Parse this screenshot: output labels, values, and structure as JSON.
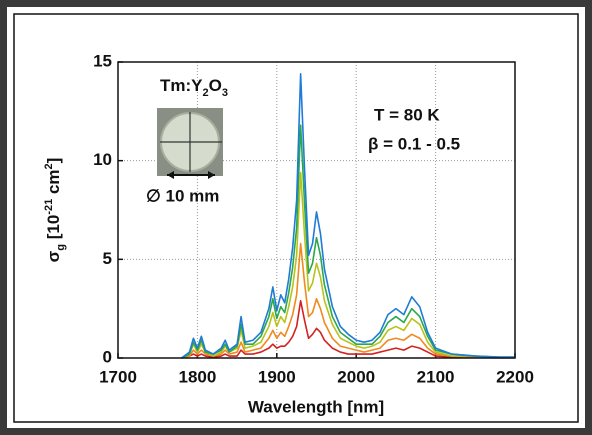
{
  "chart_data": {
    "type": "line",
    "ylabel": [
      "σ",
      "g",
      " [10",
      "-21",
      " cm",
      "2",
      "]"
    ],
    "xlabel": "Wavelength [nm]",
    "inset_label": [
      "Tm:Y",
      "2",
      "O",
      "3"
    ],
    "inset_scale": "∅ 10 mm",
    "annotations": [
      "T = 80 K",
      "β = 0.1 - 0.5"
    ],
    "xlim": [
      1700,
      2200
    ],
    "xticks": [
      1700,
      1800,
      1900,
      2000,
      2100,
      2200
    ],
    "ylim": [
      0,
      15
    ],
    "yticks": [
      0,
      5,
      10,
      15
    ],
    "grid": true,
    "x": [
      1780,
      1790,
      1795,
      1800,
      1805,
      1810,
      1820,
      1830,
      1835,
      1840,
      1850,
      1855,
      1860,
      1870,
      1880,
      1890,
      1895,
      1900,
      1905,
      1910,
      1915,
      1920,
      1925,
      1930,
      1935,
      1940,
      1945,
      1950,
      1955,
      1960,
      1970,
      1980,
      1990,
      2000,
      2010,
      2020,
      2030,
      2040,
      2050,
      2060,
      2070,
      2080,
      2090,
      2100,
      2120,
      2150,
      2180,
      2200
    ],
    "series": [
      {
        "color": "#d42121",
        "values": [
          0,
          0.1,
          0.2,
          0.1,
          0.2,
          0.1,
          0.04,
          0.1,
          0.2,
          0.1,
          0.1,
          0.4,
          0.2,
          0.2,
          0.3,
          0.5,
          0.7,
          0.5,
          0.6,
          0.6,
          0.8,
          1.1,
          1.6,
          2.9,
          1.9,
          1.0,
          1.2,
          1.5,
          1.3,
          0.9,
          0.5,
          0.3,
          0.2,
          0.2,
          0.2,
          0.2,
          0.3,
          0.4,
          0.5,
          0.4,
          0.6,
          0.5,
          0.3,
          0.1,
          0.04,
          0.02,
          0.01,
          0.01
        ]
      },
      {
        "color": "#f08a1e",
        "values": [
          0,
          0.1,
          0.4,
          0.2,
          0.4,
          0.2,
          0.1,
          0.2,
          0.4,
          0.2,
          0.3,
          0.8,
          0.3,
          0.4,
          0.5,
          1.0,
          1.4,
          1.0,
          1.3,
          1.1,
          1.6,
          2.2,
          3.2,
          5.8,
          3.8,
          2.1,
          2.3,
          3.0,
          2.5,
          1.8,
          1.0,
          0.6,
          0.5,
          0.4,
          0.3,
          0.4,
          0.5,
          0.9,
          1.0,
          0.9,
          1.2,
          1.0,
          0.5,
          0.2,
          0.1,
          0.04,
          0.02,
          0.02
        ]
      },
      {
        "color": "#b8c21c",
        "values": [
          0,
          0.2,
          0.7,
          0.3,
          0.7,
          0.3,
          0.1,
          0.3,
          0.6,
          0.3,
          0.5,
          1.4,
          0.5,
          0.6,
          0.8,
          1.6,
          2.3,
          1.6,
          2.1,
          1.8,
          2.6,
          3.6,
          5.2,
          9.4,
          6.2,
          3.4,
          3.8,
          4.8,
          4.1,
          2.9,
          1.7,
          1.0,
          0.8,
          0.6,
          0.5,
          0.6,
          0.8,
          1.4,
          1.6,
          1.4,
          2.0,
          1.7,
          0.8,
          0.3,
          0.1,
          0.1,
          0.03,
          0.03
        ]
      },
      {
        "color": "#2aa84a",
        "values": [
          0,
          0.2,
          0.8,
          0.4,
          0.9,
          0.3,
          0.2,
          0.4,
          0.7,
          0.3,
          0.6,
          1.7,
          0.7,
          0.7,
          1.1,
          2.1,
          3.0,
          2.0,
          2.6,
          2.3,
          3.3,
          4.6,
          6.6,
          11.8,
          7.8,
          4.3,
          4.8,
          6.1,
          5.2,
          3.7,
          2.1,
          1.3,
          1.0,
          0.7,
          0.7,
          0.7,
          1.1,
          1.8,
          2.1,
          1.8,
          2.5,
          2.1,
          1.1,
          0.4,
          0.2,
          0.1,
          0.04,
          0.04
        ]
      },
      {
        "color": "#1f7bd6",
        "values": [
          0,
          0.3,
          1.0,
          0.5,
          1.1,
          0.4,
          0.2,
          0.5,
          0.9,
          0.4,
          0.7,
          2.1,
          0.8,
          0.9,
          1.3,
          2.5,
          3.6,
          2.4,
          3.2,
          2.8,
          4.0,
          5.6,
          8.0,
          14.4,
          9.5,
          5.2,
          5.8,
          7.4,
          6.3,
          4.5,
          2.6,
          1.6,
          1.2,
          0.9,
          0.8,
          0.9,
          1.3,
          2.2,
          2.5,
          2.2,
          3.1,
          2.6,
          1.3,
          0.5,
          0.2,
          0.1,
          0.05,
          0.05
        ]
      }
    ]
  }
}
